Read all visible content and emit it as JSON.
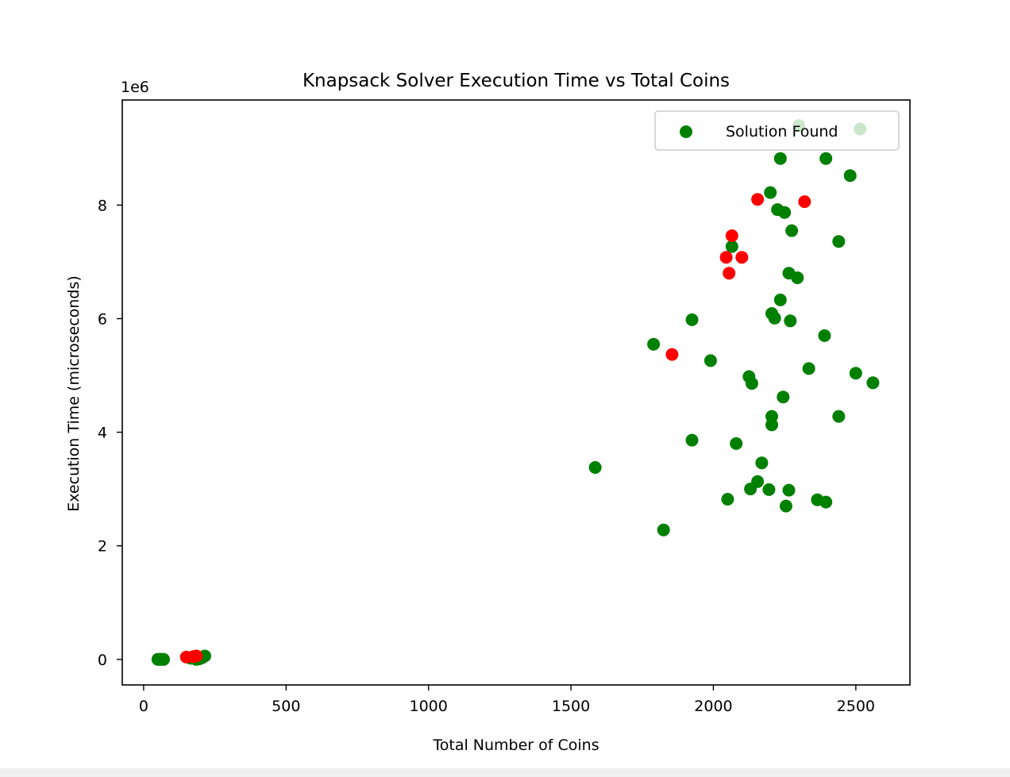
{
  "colors": {
    "solution_found": "#008000",
    "no_solution": "#ff0000",
    "axes": "#000000",
    "background": "#ffffff",
    "legend_border": "#cccccc"
  },
  "chart_data": {
    "type": "scatter",
    "title": "Knapsack Solver Execution Time vs Total Coins",
    "xlabel": "Total Number of Coins",
    "ylabel": "Execution Time (microseconds)",
    "y_offset_label": "1e6",
    "xlim": [
      -75,
      2690
    ],
    "ylim": [
      -450000,
      9850000
    ],
    "xticks": [
      0,
      500,
      1000,
      1500,
      2000,
      2500
    ],
    "yticks": [
      0,
      2000000,
      4000000,
      6000000,
      8000000
    ],
    "ytick_labels": [
      "0",
      "2",
      "4",
      "6",
      "8"
    ],
    "grid": false,
    "legend": {
      "location": "upper right",
      "entries": [
        "Solution Found"
      ]
    },
    "series": [
      {
        "name": "Solution Found",
        "color": "#008000",
        "points": [
          [
            50,
            0
          ],
          [
            55,
            0
          ],
          [
            60,
            0
          ],
          [
            65,
            0
          ],
          [
            70,
            0
          ],
          [
            165,
            20000
          ],
          [
            175,
            30000
          ],
          [
            185,
            0
          ],
          [
            195,
            10000
          ],
          [
            205,
            30000
          ],
          [
            215,
            60000
          ],
          [
            1585,
            3380000
          ],
          [
            1790,
            5550000
          ],
          [
            1825,
            2280000
          ],
          [
            1925,
            5980000
          ],
          [
            1925,
            3860000
          ],
          [
            1990,
            5260000
          ],
          [
            2050,
            2820000
          ],
          [
            2065,
            7270000
          ],
          [
            2080,
            3800000
          ],
          [
            2125,
            4980000
          ],
          [
            2130,
            3000000
          ],
          [
            2135,
            4860000
          ],
          [
            2155,
            3130000
          ],
          [
            2170,
            3460000
          ],
          [
            2195,
            2990000
          ],
          [
            2200,
            8220000
          ],
          [
            2205,
            6090000
          ],
          [
            2205,
            4280000
          ],
          [
            2205,
            4130000
          ],
          [
            2215,
            6010000
          ],
          [
            2225,
            7920000
          ],
          [
            2235,
            6330000
          ],
          [
            2235,
            8820000
          ],
          [
            2245,
            4620000
          ],
          [
            2250,
            7870000
          ],
          [
            2255,
            2700000
          ],
          [
            2265,
            6800000
          ],
          [
            2265,
            2980000
          ],
          [
            2270,
            5960000
          ],
          [
            2275,
            7550000
          ],
          [
            2295,
            6720000
          ],
          [
            2300,
            9400000
          ],
          [
            2335,
            5120000
          ],
          [
            2365,
            2810000
          ],
          [
            2390,
            5700000
          ],
          [
            2395,
            8820000
          ],
          [
            2395,
            2770000
          ],
          [
            2440,
            7360000
          ],
          [
            2440,
            4280000
          ],
          [
            2480,
            8520000
          ],
          [
            2500,
            5040000
          ],
          [
            2515,
            9340000
          ],
          [
            2560,
            4870000
          ]
        ]
      },
      {
        "color": "#ff0000",
        "points": [
          [
            150,
            40000
          ],
          [
            175,
            50000
          ],
          [
            185,
            60000
          ],
          [
            1855,
            5370000
          ],
          [
            2045,
            7080000
          ],
          [
            2055,
            6800000
          ],
          [
            2065,
            7460000
          ],
          [
            2100,
            7080000
          ],
          [
            2155,
            8100000
          ],
          [
            2320,
            8060000
          ]
        ]
      }
    ]
  }
}
